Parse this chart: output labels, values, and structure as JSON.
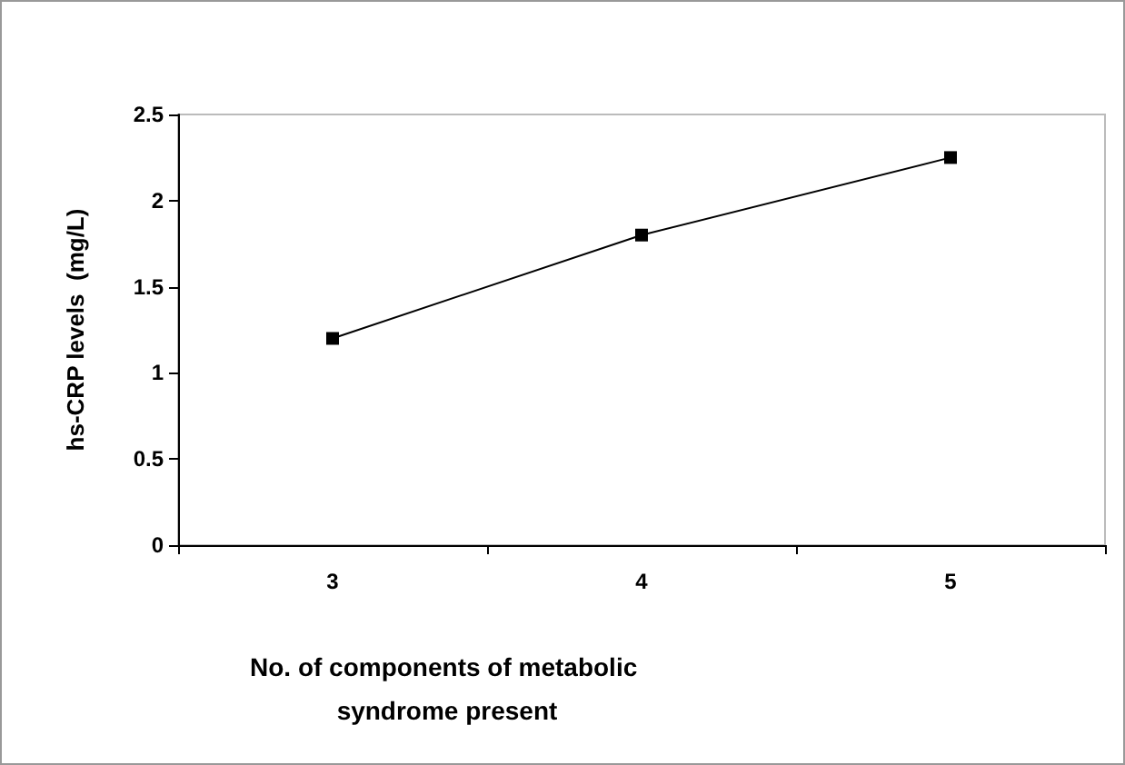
{
  "chart_data": {
    "type": "line",
    "categories": [
      "3",
      "4",
      "5"
    ],
    "series": [
      {
        "color": "#000000",
        "values": [
          1.2,
          1.8,
          2.25
        ]
      }
    ],
    "xlabel": "No. of components of metabolic syndrome present",
    "ylabel": "hs-CRP levels  (mg/L)",
    "ylim": [
      0,
      2.5
    ],
    "yticks": [
      0,
      0.5,
      1,
      1.5,
      2,
      2.5
    ],
    "grid": false,
    "marker": "square",
    "line_style": "solid"
  }
}
